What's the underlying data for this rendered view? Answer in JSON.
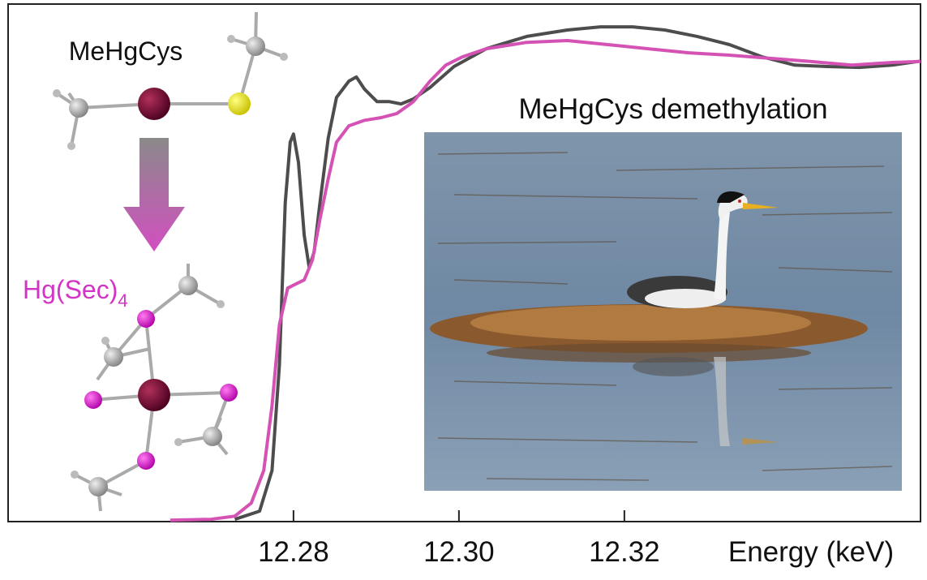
{
  "chart_data": {
    "type": "line",
    "x_label": "Energy (keV)",
    "xlim": [
      12.2455,
      12.3558
    ],
    "ylim": [
      -0.005,
      1.13
    ],
    "xticks": [
      12.28,
      12.3,
      12.32
    ],
    "xtick_labels": [
      "12.28",
      "12.30",
      "12.32"
    ],
    "annotations": {
      "top": "MeHgCys",
      "bottom": {
        "text": "Hg(Sec)",
        "subscript": "4",
        "color": "#d235c6"
      },
      "photo": "MeHgCys demethylation"
    },
    "series": [
      {
        "color": "#4d4d4d",
        "x": [
          12.2729,
          12.2759,
          12.2774,
          12.2783,
          12.279,
          12.2796,
          12.28,
          12.2806,
          12.2813,
          12.2819,
          12.2825,
          12.2832,
          12.2842,
          12.2852,
          12.2867,
          12.2876,
          12.2886,
          12.2901,
          12.2916,
          12.293,
          12.2945,
          12.2965,
          12.2994,
          12.3033,
          12.3082,
          12.3131,
          12.3171,
          12.321,
          12.3249,
          12.3288,
          12.3327,
          12.3367,
          12.3406,
          12.3445,
          12.3484,
          12.3524,
          12.3558
        ],
        "values": [
          0,
          0.018,
          0.107,
          0.338,
          0.694,
          0.827,
          0.845,
          0.783,
          0.623,
          0.552,
          0.587,
          0.694,
          0.836,
          0.925,
          0.961,
          0.97,
          0.943,
          0.916,
          0.916,
          0.911,
          0.922,
          0.947,
          0.993,
          1.032,
          1.059,
          1.073,
          1.08,
          1.08,
          1.073,
          1.059,
          1.041,
          1.014,
          0.996,
          0.993,
          0.991,
          0.996,
          1.005
        ]
      },
      {
        "color": "#d452b4",
        "x": [
          12.2651,
          12.27,
          12.2729,
          12.2749,
          12.2764,
          12.2774,
          12.2783,
          12.2793,
          12.2803,
          12.2813,
          12.2823,
          12.2832,
          12.2842,
          12.2852,
          12.2867,
          12.2886,
          12.2906,
          12.2925,
          12.2945,
          12.2965,
          12.2984,
          12.3004,
          12.3033,
          12.3082,
          12.3131,
          12.318,
          12.3229,
          12.3278,
          12.3327,
          12.3376,
          12.3425,
          12.3475,
          12.3524,
          12.3558
        ],
        "values": [
          -0.002,
          0,
          0.007,
          0.036,
          0.107,
          0.249,
          0.427,
          0.507,
          0.516,
          0.525,
          0.569,
          0.658,
          0.747,
          0.827,
          0.863,
          0.875,
          0.881,
          0.89,
          0.916,
          0.961,
          0.996,
          1.014,
          1.032,
          1.046,
          1.05,
          1.041,
          1.032,
          1.023,
          1.018,
          1.011,
          1.004,
          0.996,
          1.002,
          1.004
        ]
      }
    ]
  }
}
